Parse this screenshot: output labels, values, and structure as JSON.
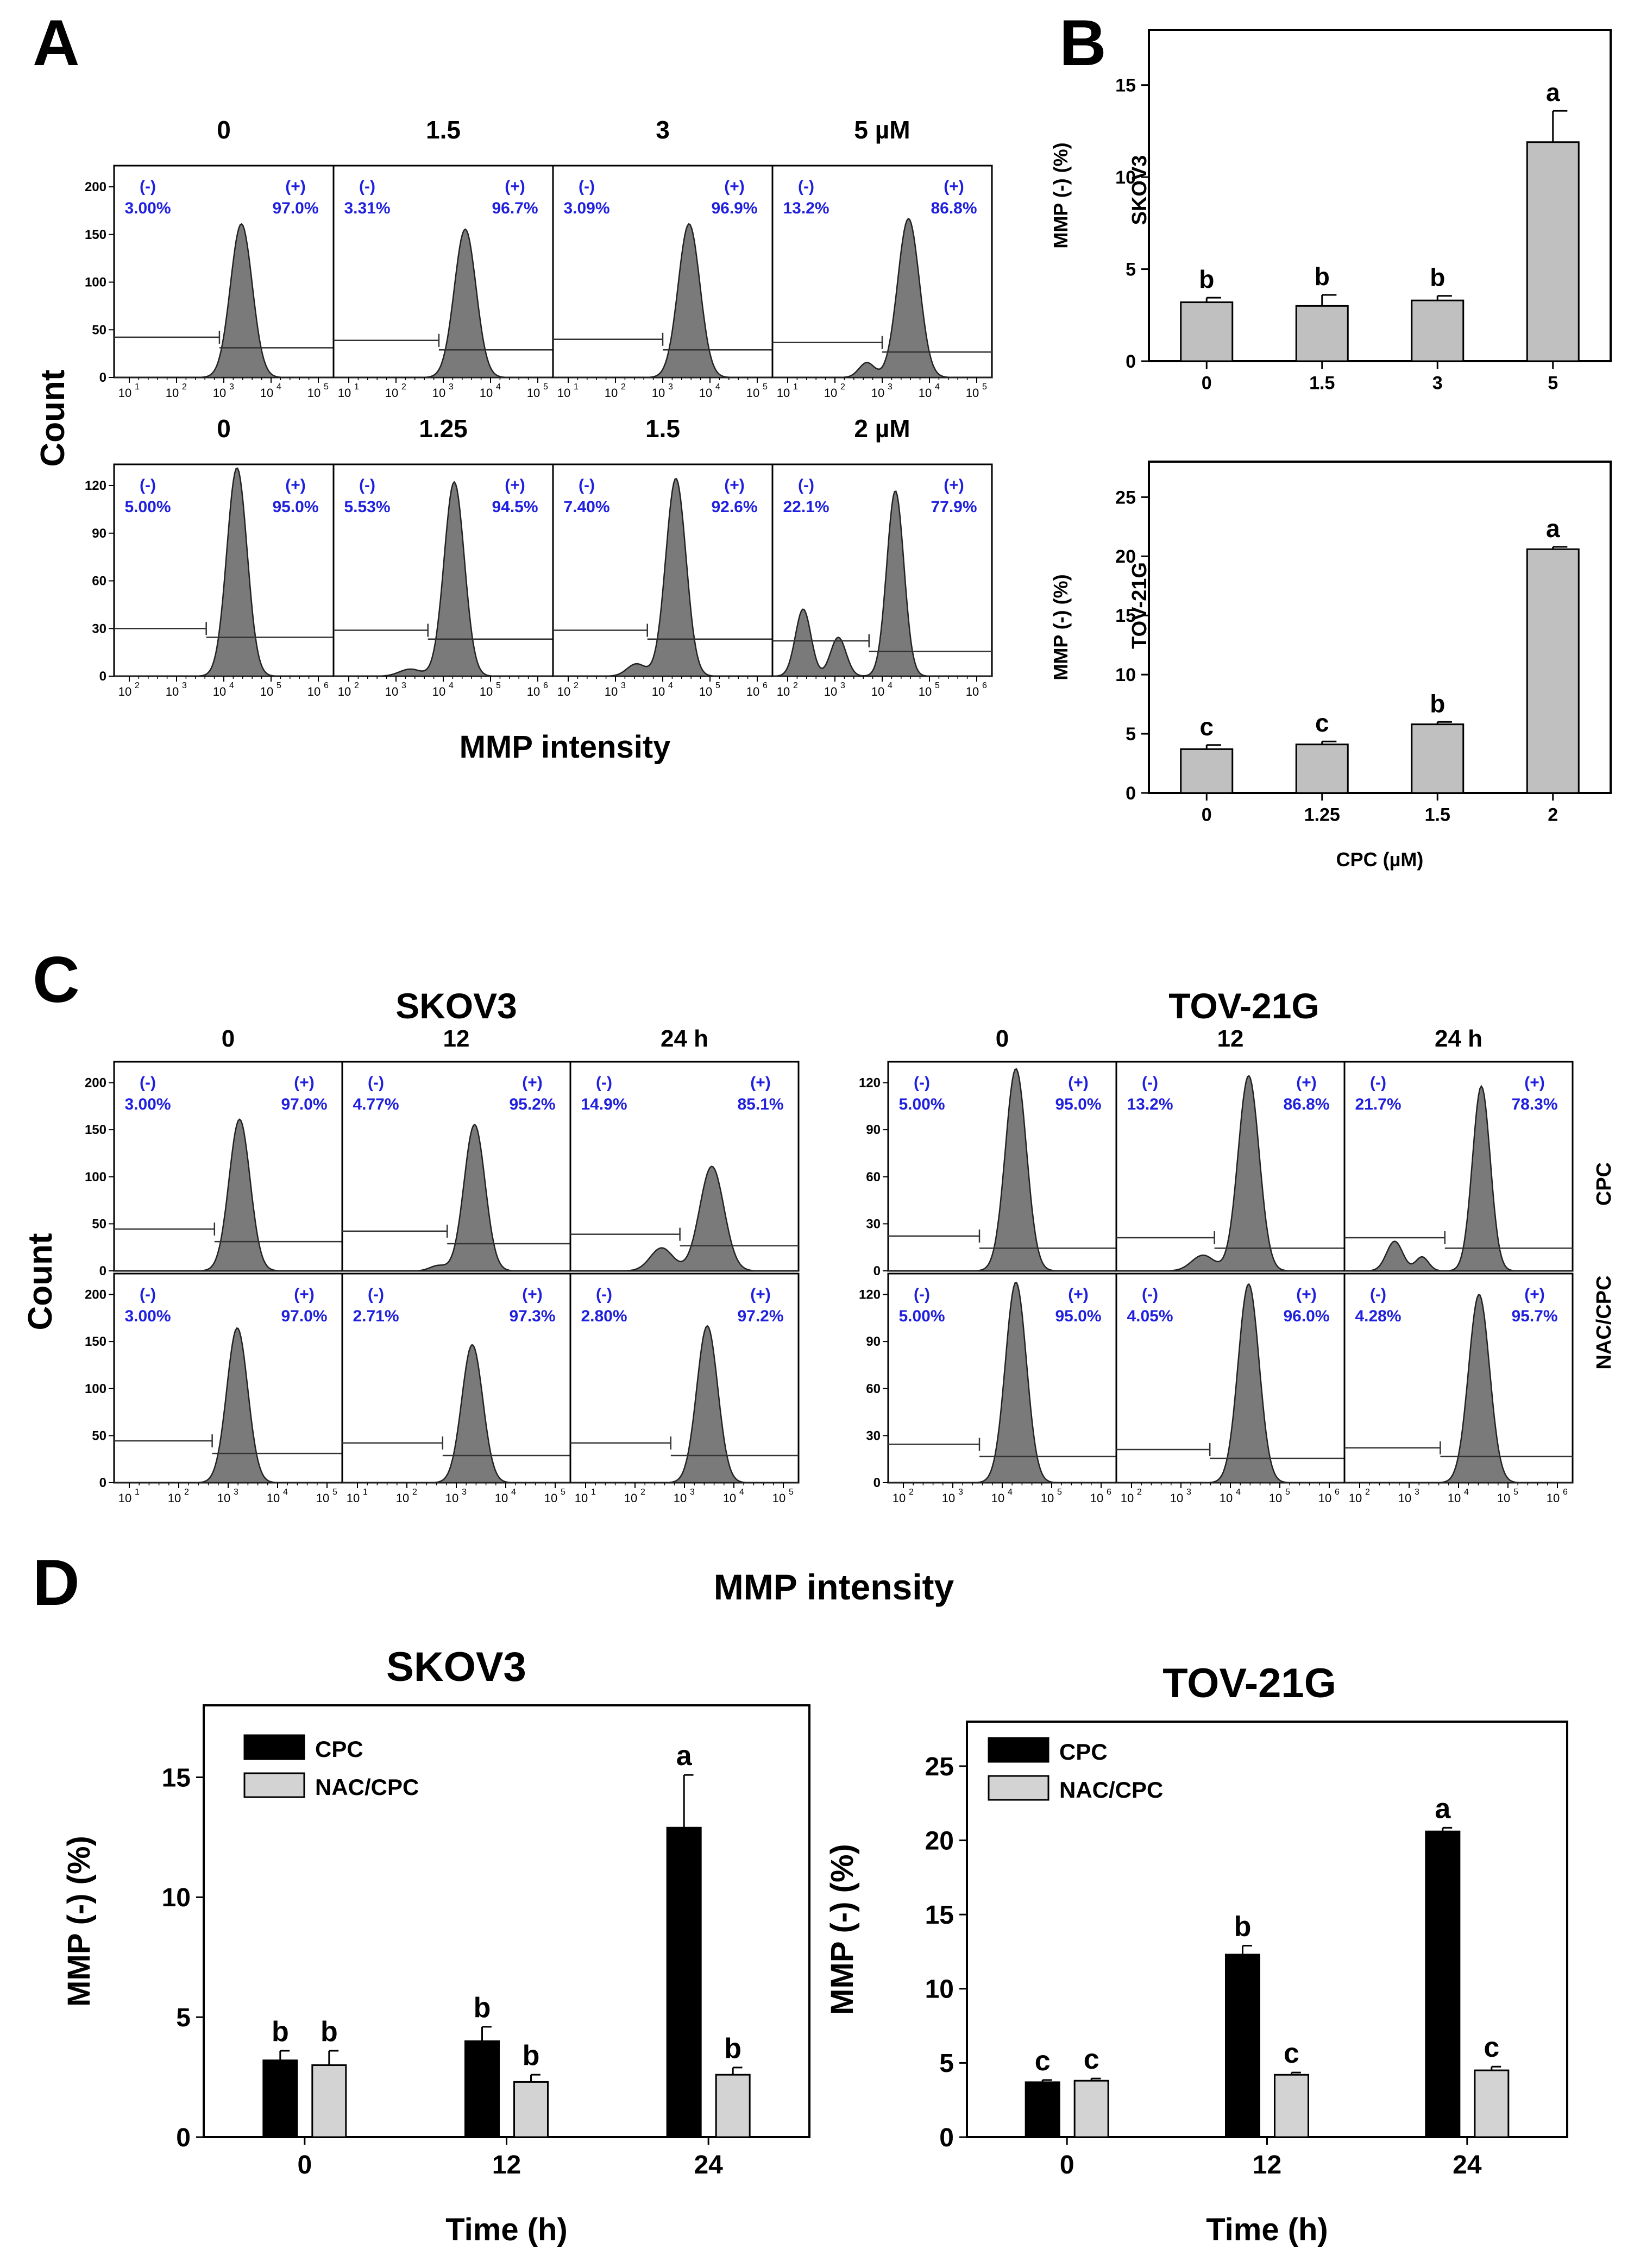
{
  "figure": {
    "panel_letters": [
      "A",
      "B",
      "C",
      "D"
    ]
  },
  "chart_data": [
    {
      "id": "A",
      "type": "histogram-grid",
      "ylabel": "Count",
      "xlabel": "MMP intensity",
      "rows": [
        {
          "line": "SKOV3",
          "yticks": [
            "0",
            "50",
            "100",
            "150",
            "200"
          ],
          "ymax": 200,
          "xticks": [
            "10",
            "10",
            "10",
            "10",
            "10"
          ],
          "xexp": [
            "1",
            "2",
            "3",
            "4",
            "5"
          ],
          "conds": [
            "0",
            "1.5",
            "3",
            "5 µM"
          ],
          "neg": [
            "3.00%",
            "3.31%",
            "3.09%",
            "13.2%"
          ],
          "pos": [
            "97.0%",
            "96.7%",
            "96.9%",
            "86.8%"
          ],
          "peak": [
            145,
            140,
            145,
            150
          ]
        },
        {
          "line": "TOV-21G",
          "yticks": [
            "0",
            "30",
            "60",
            "90",
            "120"
          ],
          "ymax": 120,
          "xticks": [
            "10",
            "10",
            "10",
            "10",
            "10"
          ],
          "xexp": [
            "2",
            "3",
            "4",
            "5",
            "6"
          ],
          "conds": [
            "0",
            "1.25",
            "1.5",
            "2 µM"
          ],
          "neg": [
            "5.00%",
            "5.53%",
            "7.40%",
            "22.1%"
          ],
          "pos": [
            "95.0%",
            "94.5%",
            "92.6%",
            "77.9%"
          ],
          "peak": [
            118,
            110,
            112,
            105
          ]
        }
      ],
      "gate_labels": {
        "neg": "(-)",
        "pos": "(+)"
      }
    },
    {
      "id": "B",
      "type": "bar",
      "charts": [
        {
          "line": "SKOV3",
          "ylabel": "MMP (-) (%)",
          "categories": [
            "0",
            "1.5",
            "3",
            "5"
          ],
          "values": [
            3.2,
            3.0,
            3.3,
            11.9
          ],
          "errors": [
            0.25,
            0.6,
            0.25,
            1.7
          ],
          "letters": [
            "b",
            "b",
            "b",
            "a"
          ],
          "ylim": [
            0,
            18
          ],
          "yticks": [
            0,
            5,
            10,
            15
          ]
        },
        {
          "line": "TOV-21G",
          "ylabel": "MMP (-) (%)",
          "xlabel": "CPC (µM)",
          "categories": [
            "0",
            "1.25",
            "1.5",
            "2"
          ],
          "values": [
            3.7,
            4.1,
            5.8,
            20.6
          ],
          "errors": [
            0.35,
            0.25,
            0.2,
            0.2
          ],
          "letters": [
            "c",
            "c",
            "b",
            "a"
          ],
          "ylim": [
            0,
            28
          ],
          "yticks": [
            0,
            5,
            10,
            15,
            20,
            25
          ]
        }
      ]
    },
    {
      "id": "C",
      "type": "histogram-grid",
      "ylabel": "Count",
      "xlabel": "MMP intensity",
      "row_labels": [
        "CPC",
        "NAC/CPC"
      ],
      "groups": [
        {
          "title": "SKOV3",
          "conds": [
            "0",
            "12",
            "24 h"
          ],
          "yticks": [
            "0",
            "50",
            "100",
            "150",
            "200"
          ],
          "xexp": [
            "1",
            "2",
            "3",
            "4",
            "5"
          ],
          "neg": [
            [
              "3.00%",
              "4.77%",
              "14.9%"
            ],
            [
              "3.00%",
              "2.71%",
              "2.80%"
            ]
          ],
          "pos": [
            [
              "97.0%",
              "95.2%",
              "85.1%"
            ],
            [
              "97.0%",
              "97.3%",
              "97.2%"
            ]
          ]
        },
        {
          "title": "TOV-21G",
          "conds": [
            "0",
            "12",
            "24 h"
          ],
          "yticks": [
            "0",
            "30",
            "60",
            "90",
            "120"
          ],
          "xexp": [
            "2",
            "3",
            "4",
            "5",
            "6"
          ],
          "neg": [
            [
              "5.00%",
              "13.2%",
              "21.7%"
            ],
            [
              "5.00%",
              "4.05%",
              "4.28%"
            ]
          ],
          "pos": [
            [
              "95.0%",
              "86.8%",
              "78.3%"
            ],
            [
              "95.0%",
              "96.0%",
              "95.7%"
            ]
          ]
        }
      ]
    },
    {
      "id": "D",
      "type": "bar",
      "charts": [
        {
          "title": "SKOV3",
          "ylabel": "MMP (-) (%)",
          "xlabel": "Time (h)",
          "categories": [
            "0",
            "12",
            "24"
          ],
          "series": [
            {
              "name": "CPC",
              "color": "#000000",
              "values": [
                3.2,
                4.0,
                12.9
              ],
              "errors": [
                0.4,
                0.6,
                2.2
              ],
              "letters": [
                "b",
                "b",
                "a"
              ]
            },
            {
              "name": "NAC/CPC",
              "color": "#d3d3d3",
              "values": [
                3.0,
                2.3,
                2.6
              ],
              "errors": [
                0.6,
                0.3,
                0.3
              ],
              "letters": [
                "b",
                "b",
                "b"
              ]
            }
          ],
          "ylim": [
            0,
            18
          ],
          "yticks": [
            0,
            5,
            10,
            15
          ]
        },
        {
          "title": "TOV-21G",
          "ylabel": "MMP (-) (%)",
          "xlabel": "Time (h)",
          "categories": [
            "0",
            "12",
            "24"
          ],
          "series": [
            {
              "name": "CPC",
              "color": "#000000",
              "values": [
                3.7,
                12.3,
                20.6
              ],
              "errors": [
                0.15,
                0.6,
                0.25
              ],
              "letters": [
                "c",
                "b",
                "a"
              ]
            },
            {
              "name": "NAC/CPC",
              "color": "#d3d3d3",
              "values": [
                3.8,
                4.2,
                4.5
              ],
              "errors": [
                0.15,
                0.15,
                0.25
              ],
              "letters": [
                "c",
                "c",
                "c"
              ]
            }
          ],
          "ylim": [
            0,
            28
          ],
          "yticks": [
            0,
            5,
            10,
            15,
            20,
            25
          ]
        }
      ]
    }
  ]
}
